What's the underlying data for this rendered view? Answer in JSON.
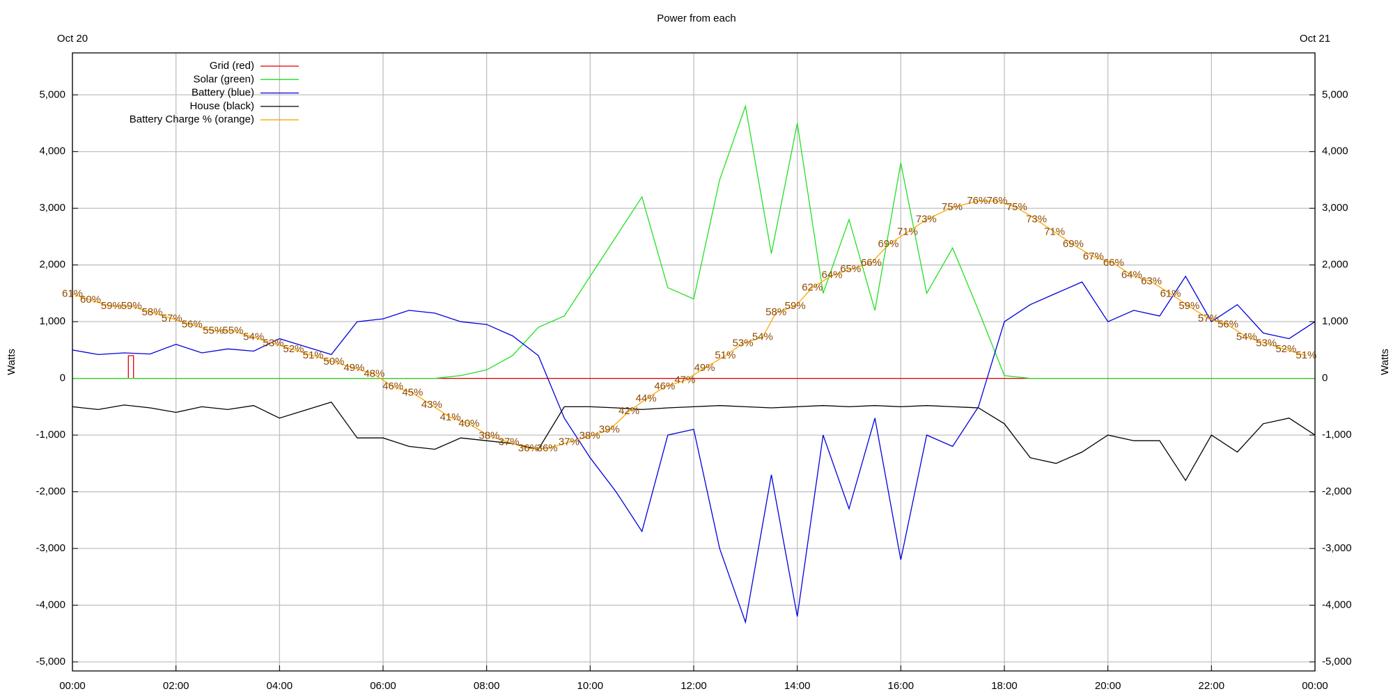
{
  "chart_data": {
    "type": "line",
    "title": "Power from each",
    "y_label": "Watts",
    "date_labels": [
      "Oct 20",
      "Oct 21"
    ],
    "xlim": [
      0,
      24
    ],
    "xticks": [
      {
        "value": 0,
        "label": "00:00"
      },
      {
        "value": 2,
        "label": "02:00"
      },
      {
        "value": 4,
        "label": "04:00"
      },
      {
        "value": 6,
        "label": "06:00"
      },
      {
        "value": 8,
        "label": "08:00"
      },
      {
        "value": 10,
        "label": "10:00"
      },
      {
        "value": 12,
        "label": "12:00"
      },
      {
        "value": 14,
        "label": "14:00"
      },
      {
        "value": 16,
        "label": "16:00"
      },
      {
        "value": 18,
        "label": "18:00"
      },
      {
        "value": 20,
        "label": "20:00"
      },
      {
        "value": 22,
        "label": "22:00"
      },
      {
        "value": 24,
        "label": "00:00"
      }
    ],
    "ylim": [
      -5160,
      5740
    ],
    "yticks": [
      {
        "value": -5000,
        "label": "-5,000"
      },
      {
        "value": -4000,
        "label": "-4,000"
      },
      {
        "value": -3000,
        "label": "-3,000"
      },
      {
        "value": -2000,
        "label": "-2,000"
      },
      {
        "value": -1000,
        "label": "-1,000"
      },
      0,
      {
        "value": 1000,
        "label": "1,000"
      },
      {
        "value": 2000,
        "label": "2,000"
      },
      {
        "value": 3000,
        "label": "3,000"
      },
      {
        "value": 4000,
        "label": "4,000"
      },
      {
        "value": 5000,
        "label": "5,000"
      }
    ],
    "y2lim": [
      0,
      100
    ],
    "grid": true,
    "legend": "upper left",
    "x": [
      0,
      0.5,
      1,
      1.5,
      2,
      2.5,
      3,
      3.5,
      4,
      4.5,
      5,
      5.5,
      6,
      6.5,
      7,
      7.5,
      8,
      8.5,
      9,
      9.5,
      10,
      10.5,
      11,
      11.5,
      12,
      12.5,
      13,
      13.5,
      14,
      14.5,
      15,
      15.5,
      16,
      16.5,
      17,
      17.5,
      18,
      18.5,
      19,
      19.5,
      20,
      20.5,
      21,
      21.5,
      22,
      22.5,
      23,
      23.5,
      24
    ],
    "series": [
      {
        "name": "Grid (red)",
        "color": "#e00000",
        "x": [
          0,
          1.08,
          1.08,
          1.18,
          1.18,
          24
        ],
        "values": [
          0,
          0,
          400,
          400,
          0,
          0
        ]
      },
      {
        "name": "Solar (green)",
        "color": "#22e022",
        "values": [
          0,
          0,
          0,
          0,
          0,
          0,
          0,
          0,
          0,
          0,
          0,
          0,
          0,
          0,
          0,
          50,
          150,
          400,
          900,
          1100,
          1800,
          2500,
          3200,
          1600,
          1400,
          3500,
          4800,
          2200,
          4500,
          1500,
          2800,
          1200,
          3800,
          1500,
          2300,
          1200,
          50,
          0,
          0,
          0,
          0,
          0,
          0,
          0,
          0,
          0,
          0,
          0,
          0
        ]
      },
      {
        "name": "Battery (blue)",
        "color": "#0000dd",
        "values": [
          500,
          420,
          450,
          430,
          600,
          450,
          520,
          480,
          700,
          560,
          420,
          1000,
          1050,
          1200,
          1150,
          1000,
          950,
          750,
          400,
          -700,
          -1400,
          -2000,
          -2700,
          -1000,
          -900,
          -3000,
          -4300,
          -1700,
          -4200,
          -1000,
          -2300,
          -700,
          -3200,
          -1000,
          -1200,
          -500,
          1000,
          1300,
          1500,
          1700,
          1000,
          1200,
          1100,
          1800,
          1000,
          1300,
          800,
          700,
          1000
        ]
      },
      {
        "name": "House (black)",
        "color": "#000000",
        "values": [
          -500,
          -550,
          -470,
          -520,
          -600,
          -500,
          -550,
          -480,
          -700,
          -560,
          -420,
          -1050,
          -1050,
          -1200,
          -1250,
          -1050,
          -1100,
          -1150,
          -1250,
          -500,
          -500,
          -520,
          -550,
          -520,
          -500,
          -480,
          -500,
          -520,
          -500,
          -480,
          -500,
          -480,
          -500,
          -480,
          -500,
          -520,
          -800,
          -1400,
          -1500,
          -1300,
          -1000,
          -1100,
          -1100,
          -1800,
          -1000,
          -1300,
          -800,
          -700,
          -1000
        ]
      },
      {
        "name": "Battery Charge % (orange)",
        "color": "#ffa500",
        "axis": "y2",
        "label_color": "#8b4a00",
        "x": [
          0,
          0.35,
          0.75,
          1.14,
          1.54,
          1.92,
          2.31,
          2.72,
          3.1,
          3.5,
          3.88,
          4.27,
          4.65,
          5.05,
          5.44,
          5.83,
          6.19,
          6.57,
          6.94,
          7.3,
          7.66,
          8.05,
          8.43,
          8.81,
          9.17,
          9.59,
          9.99,
          10.37,
          10.75,
          11.08,
          11.44,
          11.83,
          12.21,
          12.61,
          12.95,
          13.33,
          13.59,
          13.96,
          14.29,
          14.67,
          15.03,
          15.43,
          15.76,
          16.13,
          16.49,
          16.99,
          17.48,
          17.86,
          18.24,
          18.62,
          18.97,
          19.33,
          19.72,
          20.11,
          20.46,
          20.84,
          21.21,
          21.57,
          21.94,
          22.32,
          22.68,
          23.06,
          23.44,
          23.83
        ],
        "values": [
          61,
          60,
          59,
          59,
          58,
          57,
          56,
          55,
          55,
          54,
          53,
          52,
          51,
          50,
          49,
          48,
          46,
          45,
          43,
          41,
          40,
          38,
          37,
          36,
          36,
          37,
          38,
          39,
          42,
          44,
          46,
          47,
          49,
          51,
          53,
          54,
          58,
          59,
          62,
          64,
          65,
          66,
          69,
          71,
          73,
          75,
          76,
          76,
          75,
          73,
          71,
          69,
          67,
          66,
          64,
          63,
          61,
          59,
          57,
          56,
          54,
          53,
          52,
          51
        ],
        "value_labels": [
          "61%",
          "60%",
          "59%",
          "59%",
          "58%",
          "57%",
          "56%",
          "55%",
          "55%",
          "54%",
          "53%",
          "52%",
          "51%",
          "50%",
          "49%",
          "48%",
          "46%",
          "45%",
          "43%",
          "41%",
          "40%",
          "38%",
          "37%",
          "36%",
          "36%",
          "37%",
          "38%",
          "39%",
          "42%",
          "44%",
          "46%",
          "47%",
          "49%",
          "51%",
          "53%",
          "54%",
          "58%",
          "59%",
          "62%",
          "64%",
          "65%",
          "66%",
          "69%",
          "71%",
          "73%",
          "75%",
          "76%",
          "76%",
          "75%",
          "73%",
          "71%",
          "69%",
          "67%",
          "66%",
          "64%",
          "63%",
          "61%",
          "59%",
          "57%",
          "56%",
          "54%",
          "53%",
          "52%",
          "51%"
        ]
      }
    ]
  }
}
